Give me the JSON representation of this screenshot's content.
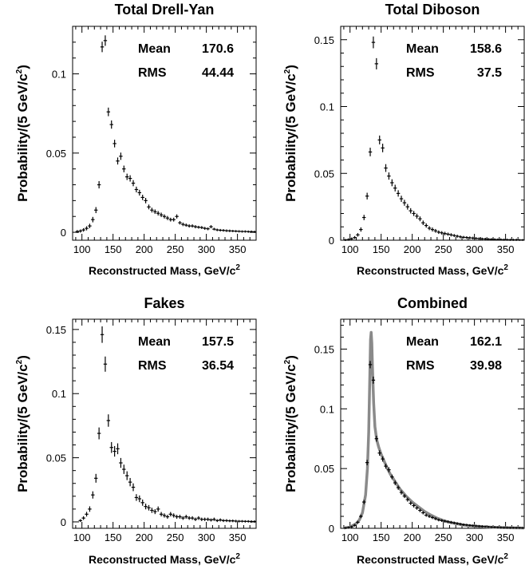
{
  "chart_data": [
    {
      "type": "scatter",
      "title": "Total Drell-Yan",
      "xlabel": "Reconstructed Mass, GeV/c",
      "xlabel_sup": "2",
      "ylabel": "Probability/(5 GeV/c",
      "ylabel_sup": "2",
      "ylabel_close": ")",
      "xlim": [
        85,
        380
      ],
      "ylim": [
        -0.005,
        0.13
      ],
      "xticks": [
        100,
        150,
        200,
        250,
        300,
        350
      ],
      "xtick_labels": [
        "100",
        "150",
        "200",
        "250",
        "300",
        "350"
      ],
      "yticks": [
        0,
        0.05,
        0.1
      ],
      "ytick_labels": [
        "0",
        "0.05",
        "0.1"
      ],
      "stats": [
        {
          "label": "Mean",
          "value": "170.6"
        },
        {
          "label": "RMS",
          "value": "44.44"
        }
      ],
      "series": [
        {
          "x": [
            92.5,
            97.5,
            102.5,
            107.5,
            112.5,
            117.5,
            122.5,
            127.5,
            132.5,
            137.5,
            142.5,
            147.5,
            152.5,
            157.5,
            162.5,
            167.5,
            172.5,
            177.5,
            182.5,
            187.5,
            192.5,
            197.5,
            202.5,
            207.5,
            212.5,
            217.5,
            222.5,
            227.5,
            232.5,
            237.5,
            242.5,
            247.5,
            252.5,
            257.5,
            262.5,
            267.5,
            272.5,
            277.5,
            282.5,
            287.5,
            292.5,
            297.5,
            302.5,
            307.5,
            312.5,
            317.5,
            322.5,
            327.5,
            332.5,
            337.5,
            342.5,
            347.5,
            352.5,
            357.5,
            362.5,
            367.5,
            372.5,
            377.5
          ],
          "y": [
            0.0005,
            0.0008,
            0.0015,
            0.0025,
            0.004,
            0.008,
            0.014,
            0.03,
            0.117,
            0.121,
            0.076,
            0.068,
            0.056,
            0.045,
            0.048,
            0.04,
            0.035,
            0.034,
            0.031,
            0.027,
            0.025,
            0.022,
            0.02,
            0.016,
            0.014,
            0.013,
            0.012,
            0.011,
            0.01,
            0.009,
            0.008,
            0.008,
            0.01,
            0.006,
            0.005,
            0.0045,
            0.004,
            0.004,
            0.0035,
            0.0032,
            0.003,
            0.0025,
            0.0022,
            0.0035,
            0.002,
            0.0015,
            0.0013,
            0.0012,
            0.001,
            0.0009,
            0.0008,
            0.0007,
            0.0006,
            0.0005,
            0.0005,
            0.0004,
            0.0004,
            0.0003
          ],
          "err": [
            0.0004,
            0.0005,
            0.0006,
            0.0008,
            0.0009,
            0.0012,
            0.0014,
            0.0018,
            0.0028,
            0.0028,
            0.0022,
            0.0021,
            0.0019,
            0.0017,
            0.0018,
            0.0016,
            0.0015,
            0.0015,
            0.0014,
            0.0013,
            0.0013,
            0.0012,
            0.0012,
            0.001,
            0.001,
            0.0009,
            0.0009,
            0.0009,
            0.0008,
            0.0008,
            0.0007,
            0.0007,
            0.0008,
            0.0006,
            0.0006,
            0.0005,
            0.0005,
            0.0005,
            0.0005,
            0.0004,
            0.0004,
            0.0004,
            0.0004,
            0.0005,
            0.0003,
            0.0003,
            0.0003,
            0.0003,
            0.0003,
            0.0003,
            0.0002,
            0.0002,
            0.0002,
            0.0002,
            0.0002,
            0.0002,
            0.0002,
            0.0002
          ]
        }
      ]
    },
    {
      "type": "scatter",
      "title": "Total Diboson",
      "xlabel": "Reconstructed Mass, GeV/c",
      "xlabel_sup": "2",
      "ylabel": "Probability/(5 GeV/c",
      "ylabel_sup": "2",
      "ylabel_close": ")",
      "xlim": [
        85,
        380
      ],
      "ylim": [
        0,
        0.16
      ],
      "xticks": [
        100,
        150,
        200,
        250,
        300,
        350
      ],
      "xtick_labels": [
        "100",
        "150",
        "200",
        "250",
        "300",
        "350"
      ],
      "yticks": [
        0,
        0.05,
        0.1,
        0.15
      ],
      "ytick_labels": [
        "0",
        "0.05",
        "0.1",
        "0.15"
      ],
      "stats": [
        {
          "label": "Mean",
          "value": "158.6"
        },
        {
          "label": "RMS",
          "value": "37.5"
        }
      ],
      "series": [
        {
          "x": [
            92.5,
            97.5,
            102.5,
            107.5,
            112.5,
            117.5,
            122.5,
            127.5,
            132.5,
            137.5,
            142.5,
            147.5,
            152.5,
            157.5,
            162.5,
            167.5,
            172.5,
            177.5,
            182.5,
            187.5,
            192.5,
            197.5,
            202.5,
            207.5,
            212.5,
            217.5,
            222.5,
            227.5,
            232.5,
            237.5,
            242.5,
            247.5,
            252.5,
            257.5,
            262.5,
            267.5,
            272.5,
            277.5,
            282.5,
            287.5,
            292.5,
            297.5,
            302.5,
            307.5,
            312.5,
            317.5,
            322.5,
            327.5,
            332.5,
            337.5,
            342.5,
            347.5,
            352.5,
            357.5,
            362.5,
            367.5,
            372.5,
            377.5
          ],
          "y": [
            0.0002,
            0.0005,
            0.001,
            0.002,
            0.004,
            0.008,
            0.017,
            0.033,
            0.066,
            0.148,
            0.132,
            0.075,
            0.069,
            0.054,
            0.048,
            0.043,
            0.039,
            0.035,
            0.031,
            0.028,
            0.025,
            0.022,
            0.02,
            0.018,
            0.016,
            0.013,
            0.011,
            0.009,
            0.008,
            0.007,
            0.006,
            0.0055,
            0.005,
            0.0045,
            0.004,
            0.0035,
            0.003,
            0.0025,
            0.0022,
            0.002,
            0.0018,
            0.0016,
            0.0014,
            0.0012,
            0.001,
            0.0009,
            0.0008,
            0.0007,
            0.0006,
            0.0005,
            0.0005,
            0.0004,
            0.0004,
            0.0003,
            0.0003,
            0.0003,
            0.0002,
            0.0002
          ],
          "err": [
            0.0002,
            0.0003,
            0.0004,
            0.0005,
            0.0007,
            0.001,
            0.0014,
            0.0019,
            0.0026,
            0.0038,
            0.0036,
            0.0027,
            0.0026,
            0.0023,
            0.0021,
            0.002,
            0.0019,
            0.0018,
            0.0017,
            0.0016,
            0.0015,
            0.0014,
            0.0013,
            0.0013,
            0.0012,
            0.0011,
            0.001,
            0.0009,
            0.0009,
            0.0008,
            0.0007,
            0.0007,
            0.0007,
            0.0006,
            0.0006,
            0.0005,
            0.0005,
            0.0005,
            0.0004,
            0.0004,
            0.0004,
            0.0004,
            0.0003,
            0.0003,
            0.0003,
            0.0003,
            0.0002,
            0.0002,
            0.0002,
            0.0002,
            0.0002,
            0.0002,
            0.0002,
            0.0002,
            0.0002,
            0.0002,
            0.0001,
            0.0001
          ]
        }
      ]
    },
    {
      "type": "scatter",
      "title": "Fakes",
      "xlabel": "Reconstructed Mass, GeV/c",
      "xlabel_sup": "2",
      "ylabel": "Probability/(5 GeV/c",
      "ylabel_sup": "2",
      "ylabel_close": ")",
      "xlim": [
        85,
        380
      ],
      "ylim": [
        -0.005,
        0.158
      ],
      "xticks": [
        100,
        150,
        200,
        250,
        300,
        350
      ],
      "xtick_labels": [
        "100",
        "150",
        "200",
        "250",
        "300",
        "350"
      ],
      "yticks": [
        0,
        0.05,
        0.1,
        0.15
      ],
      "ytick_labels": [
        "0",
        "0.05",
        "0.1",
        "0.15"
      ],
      "stats": [
        {
          "label": "Mean",
          "value": "157.5"
        },
        {
          "label": "RMS",
          "value": "36.54"
        }
      ],
      "series": [
        {
          "x": [
            97.5,
            102.5,
            107.5,
            112.5,
            117.5,
            122.5,
            127.5,
            132.5,
            137.5,
            142.5,
            147.5,
            152.5,
            157.5,
            162.5,
            167.5,
            172.5,
            177.5,
            182.5,
            187.5,
            192.5,
            197.5,
            202.5,
            207.5,
            212.5,
            217.5,
            222.5,
            227.5,
            232.5,
            237.5,
            242.5,
            247.5,
            252.5,
            257.5,
            262.5,
            267.5,
            272.5,
            277.5,
            282.5,
            287.5,
            292.5,
            297.5,
            302.5,
            307.5,
            312.5,
            317.5,
            322.5,
            327.5,
            332.5,
            337.5,
            342.5,
            347.5,
            352.5,
            357.5,
            362.5,
            367.5,
            372.5,
            377.5
          ],
          "y": [
            0.001,
            0.003,
            0.006,
            0.01,
            0.021,
            0.034,
            0.069,
            0.146,
            0.123,
            0.079,
            0.058,
            0.055,
            0.057,
            0.046,
            0.041,
            0.036,
            0.031,
            0.027,
            0.019,
            0.018,
            0.015,
            0.012,
            0.011,
            0.009,
            0.008,
            0.01,
            0.006,
            0.005,
            0.004,
            0.006,
            0.005,
            0.004,
            0.004,
            0.003,
            0.004,
            0.003,
            0.003,
            0.002,
            0.003,
            0.002,
            0.002,
            0.002,
            0.0015,
            0.002,
            0.001,
            0.0015,
            0.001,
            0.001,
            0.0008,
            0.0008,
            0.0006,
            0.0005,
            0.0005,
            0.0004,
            0.0004,
            0.0003,
            0.0003
          ],
          "err": [
            0.0005,
            0.0008,
            0.0012,
            0.0015,
            0.0022,
            0.0028,
            0.004,
            0.0058,
            0.0053,
            0.0042,
            0.0036,
            0.0035,
            0.0036,
            0.0032,
            0.003,
            0.0028,
            0.0026,
            0.0024,
            0.002,
            0.002,
            0.0018,
            0.0016,
            0.0015,
            0.0014,
            0.0013,
            0.0014,
            0.0011,
            0.001,
            0.0009,
            0.0011,
            0.001,
            0.0009,
            0.0009,
            0.0008,
            0.0009,
            0.0008,
            0.0008,
            0.0007,
            0.0008,
            0.0007,
            0.0007,
            0.0007,
            0.0006,
            0.0007,
            0.0005,
            0.0006,
            0.0005,
            0.0005,
            0.0004,
            0.0004,
            0.0004,
            0.0003,
            0.0003,
            0.0003,
            0.0003,
            0.0003,
            0.0003
          ]
        }
      ]
    },
    {
      "type": "scatter",
      "title": "Combined",
      "xlabel": "Reconstructed Mass, GeV/c",
      "xlabel_sup": "2",
      "ylabel": "Probability/(5 GeV/c",
      "ylabel_sup": "2",
      "ylabel_close": ")",
      "xlim": [
        85,
        380
      ],
      "ylim": [
        0,
        0.175
      ],
      "xticks": [
        100,
        150,
        200,
        250,
        300,
        350
      ],
      "xtick_labels": [
        "100",
        "150",
        "200",
        "250",
        "300",
        "350"
      ],
      "yticks": [
        0,
        0.05,
        0.1,
        0.15
      ],
      "ytick_labels": [
        "0",
        "0.05",
        "0.1",
        "0.15"
      ],
      "stats": [
        {
          "label": "Mean",
          "value": "162.1"
        },
        {
          "label": "RMS",
          "value": "39.98"
        }
      ],
      "series": [
        {
          "x": [
            92.5,
            97.5,
            102.5,
            107.5,
            112.5,
            117.5,
            122.5,
            127.5,
            132.5,
            137.5,
            142.5,
            147.5,
            152.5,
            157.5,
            162.5,
            167.5,
            172.5,
            177.5,
            182.5,
            187.5,
            192.5,
            197.5,
            202.5,
            207.5,
            212.5,
            217.5,
            222.5,
            227.5,
            232.5,
            237.5,
            242.5,
            247.5,
            252.5,
            257.5,
            262.5,
            267.5,
            272.5,
            277.5,
            282.5,
            287.5,
            292.5,
            297.5,
            302.5,
            307.5,
            312.5,
            317.5,
            322.5,
            327.5,
            332.5,
            337.5,
            342.5,
            347.5,
            352.5,
            357.5,
            362.5,
            367.5,
            372.5,
            377.5
          ],
          "y": [
            0.0003,
            0.0006,
            0.0012,
            0.0025,
            0.005,
            0.01,
            0.022,
            0.055,
            0.137,
            0.124,
            0.075,
            0.063,
            0.058,
            0.052,
            0.049,
            0.043,
            0.038,
            0.034,
            0.03,
            0.027,
            0.024,
            0.021,
            0.019,
            0.017,
            0.015,
            0.013,
            0.011,
            0.01,
            0.009,
            0.008,
            0.007,
            0.0065,
            0.006,
            0.0055,
            0.005,
            0.0045,
            0.004,
            0.0035,
            0.003,
            0.0028,
            0.0025,
            0.0022,
            0.002,
            0.0018,
            0.0016,
            0.0014,
            0.0012,
            0.001,
            0.0009,
            0.0008,
            0.0007,
            0.0006,
            0.0006,
            0.0005,
            0.0005,
            0.0004,
            0.0004,
            0.0003
          ],
          "err": [
            0.0001,
            0.0002,
            0.0003,
            0.0004,
            0.0006,
            0.0008,
            0.0011,
            0.0016,
            0.0024,
            0.0023,
            0.0018,
            0.0016,
            0.0015,
            0.0014,
            0.0014,
            0.0013,
            0.0012,
            0.0011,
            0.0011,
            0.001,
            0.001,
            0.0009,
            0.0009,
            0.0008,
            0.0008,
            0.0007,
            0.0007,
            0.0006,
            0.0006,
            0.0006,
            0.0005,
            0.0005,
            0.0005,
            0.0005,
            0.0005,
            0.0004,
            0.0004,
            0.0004,
            0.0004,
            0.0003,
            0.0003,
            0.0003,
            0.0003,
            0.0003,
            0.0003,
            0.0002,
            0.0002,
            0.0002,
            0.0002,
            0.0002,
            0.0002,
            0.0002,
            0.0002,
            0.0002,
            0.0001,
            0.0001,
            0.0001,
            0.0001
          ]
        }
      ],
      "fit_curve": {
        "color": "#8a8a8a",
        "x": [
          90,
          100,
          110,
          115,
          120,
          125,
          128,
          130,
          132,
          133,
          134,
          135,
          136,
          138,
          140,
          143,
          146,
          150,
          155,
          160,
          165,
          170,
          180,
          190,
          200,
          210,
          220,
          230,
          240,
          250,
          260,
          270,
          280,
          290,
          300,
          320,
          340,
          360,
          380
        ],
        "y": [
          0.0003,
          0.001,
          0.004,
          0.007,
          0.013,
          0.028,
          0.05,
          0.08,
          0.13,
          0.158,
          0.164,
          0.155,
          0.135,
          0.105,
          0.085,
          0.074,
          0.068,
          0.062,
          0.056,
          0.05,
          0.045,
          0.041,
          0.033,
          0.027,
          0.022,
          0.018,
          0.014,
          0.011,
          0.0085,
          0.0065,
          0.005,
          0.004,
          0.003,
          0.0023,
          0.0018,
          0.0011,
          0.0007,
          0.0004,
          0.0003
        ]
      }
    }
  ]
}
